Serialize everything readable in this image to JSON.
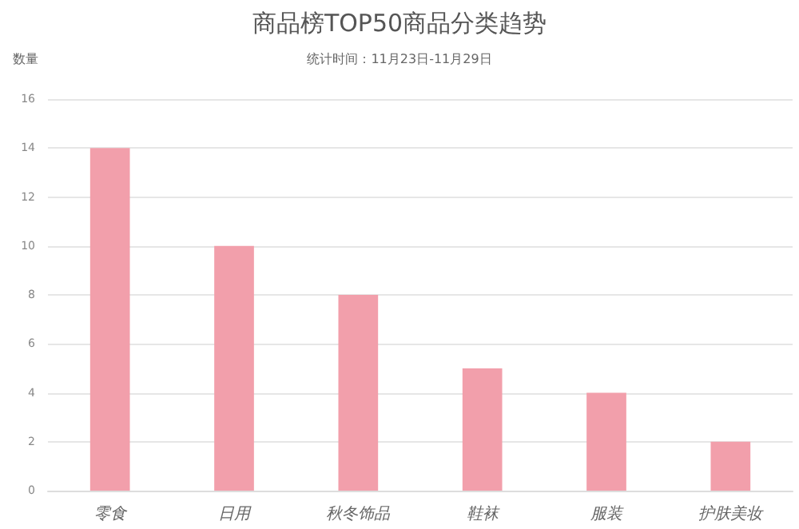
{
  "chart_data": {
    "type": "bar",
    "title": "商品榜TOP50商品分类趋势",
    "subtitle": "统计时间：11月23日-11月29日",
    "ylabel": "数量",
    "categories": [
      "零食",
      "日用",
      "秋冬饰品",
      "鞋袜",
      "服装",
      "护肤美妆"
    ],
    "values": [
      14,
      10,
      8,
      5,
      4,
      2
    ],
    "color": "#f29fab",
    "ylim": [
      0,
      16
    ],
    "yticks": [
      0,
      2,
      4,
      6,
      8,
      10,
      12,
      14,
      16
    ],
    "grid": "y"
  }
}
